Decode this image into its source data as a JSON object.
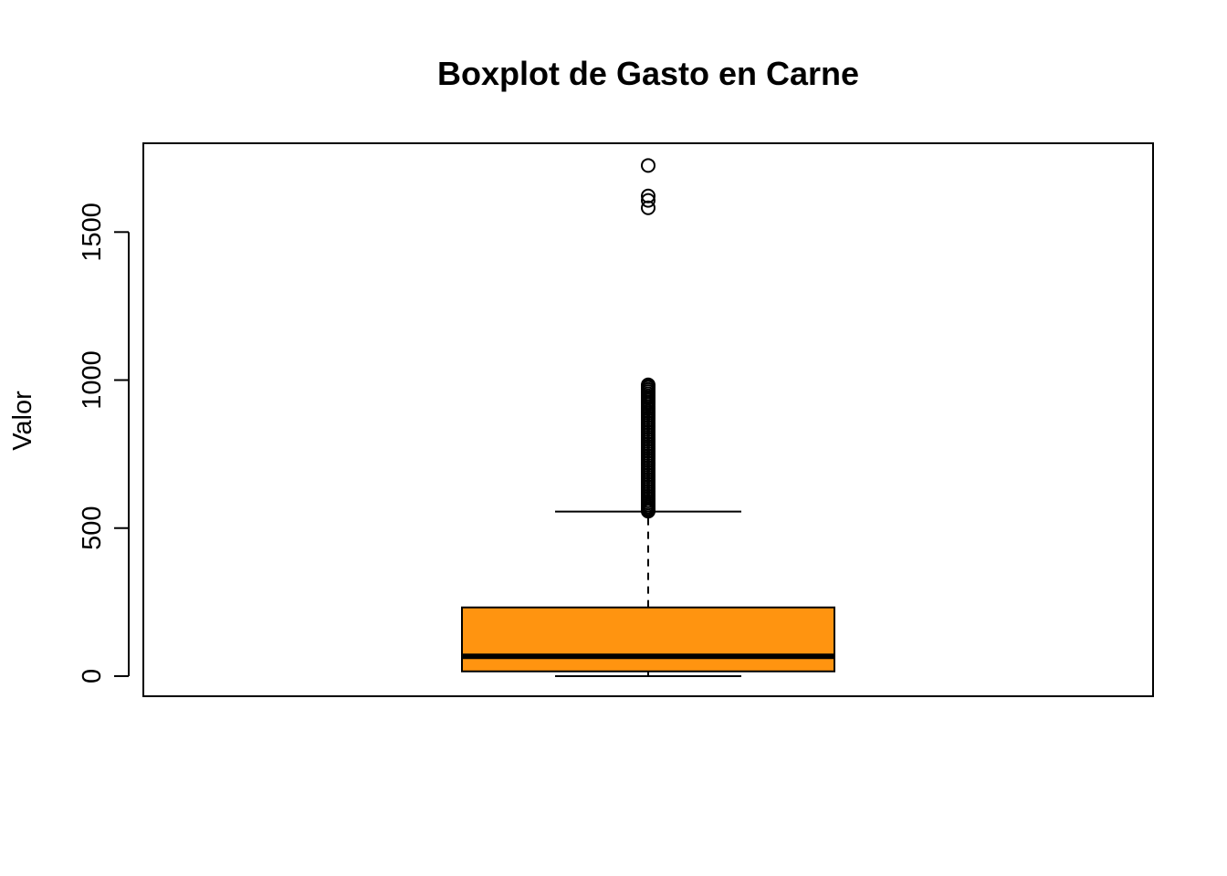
{
  "chart_data": {
    "type": "boxplot",
    "title": "Boxplot de Gasto en Carne",
    "xlabel": "",
    "ylabel": "Valor",
    "ylim": [
      -68,
      1800
    ],
    "yticks": [
      0,
      500,
      1000,
      1500
    ],
    "ytick_labels": [
      "0",
      "500",
      "1000",
      "1500"
    ],
    "grid": false,
    "legend": "none",
    "box_color": "#FF9410",
    "boxes": [
      {
        "min": 0,
        "q1": 16,
        "median": 67,
        "q3": 232,
        "whisker_low": 0,
        "whisker_high": 556,
        "outliers": [
          1725,
          1622,
          1607,
          1582,
          984,
          980,
          975,
          968,
          961,
          954,
          947,
          940,
          932,
          925,
          918,
          910,
          903,
          895,
          888,
          880,
          872,
          864,
          856,
          848,
          840,
          832,
          824,
          816,
          808,
          800,
          792,
          784,
          776,
          768,
          760,
          752,
          744,
          736,
          728,
          720,
          712,
          704,
          696,
          688,
          680,
          672,
          664,
          656,
          648,
          640,
          632,
          624,
          616,
          608,
          600,
          592,
          585,
          578,
          571,
          565,
          560,
          557
        ]
      }
    ]
  }
}
